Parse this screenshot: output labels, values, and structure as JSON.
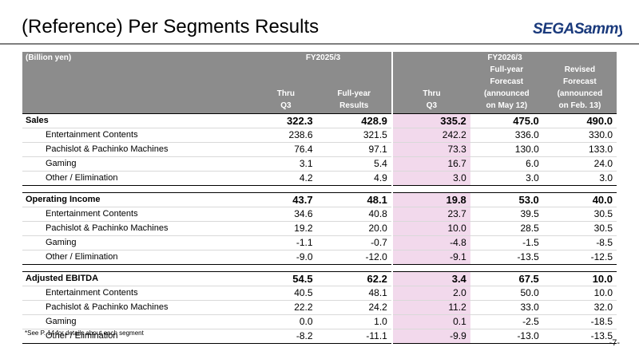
{
  "title": "(Reference) Per Segments Results",
  "logo": {
    "text": "SEGASammy"
  },
  "table": {
    "unit_label": "(Billion yen)",
    "fy2025_label": "FY2025/3",
    "fy2026_label": "FY2026/3",
    "columns": [
      {
        "line1": "",
        "line2": "",
        "line3": "Thru",
        "line4": "Q3"
      },
      {
        "line1": "",
        "line2": "",
        "line3": "Full-year",
        "line4": "Results"
      },
      {
        "line1": "",
        "line2": "",
        "line3": "Thru",
        "line4": "Q3"
      },
      {
        "line1": "Full-year",
        "line2": "Forecast",
        "line3": "(announced",
        "line4": "on May 12)"
      },
      {
        "line1": "Revised",
        "line2": "Forecast",
        "line3": "(announced",
        "line4": "on Feb. 13)"
      }
    ],
    "groups": [
      {
        "name": "Sales",
        "values": [
          "322.3",
          "428.9",
          "335.2",
          "475.0",
          "490.0"
        ],
        "rows": [
          {
            "label": "Entertainment Contents",
            "values": [
              "238.6",
              "321.5",
              "242.2",
              "336.0",
              "330.0"
            ]
          },
          {
            "label": "Pachislot & Pachinko Machines",
            "values": [
              "76.4",
              "97.1",
              "73.3",
              "130.0",
              "133.0"
            ]
          },
          {
            "label": "Gaming",
            "values": [
              "3.1",
              "5.4",
              "16.7",
              "6.0",
              "24.0"
            ]
          },
          {
            "label": "Other / Elimination",
            "values": [
              "4.2",
              "4.9",
              "3.0",
              "3.0",
              "3.0"
            ]
          }
        ]
      },
      {
        "name": "Operating Income",
        "values": [
          "43.7",
          "48.1",
          "19.8",
          "53.0",
          "40.0"
        ],
        "rows": [
          {
            "label": "Entertainment Contents",
            "values": [
              "34.6",
              "40.8",
              "23.7",
              "39.5",
              "30.5"
            ]
          },
          {
            "label": "Pachislot & Pachinko Machines",
            "values": [
              "19.2",
              "20.0",
              "10.0",
              "28.5",
              "30.5"
            ]
          },
          {
            "label": "Gaming",
            "values": [
              "-1.1",
              "-0.7",
              "-4.8",
              "-1.5",
              "-8.5"
            ]
          },
          {
            "label": "Other / Elimination",
            "values": [
              "-9.0",
              "-12.0",
              "-9.1",
              "-13.5",
              "-12.5"
            ]
          }
        ]
      },
      {
        "name": "Adjusted EBITDA",
        "values": [
          "54.5",
          "62.2",
          "3.4",
          "67.5",
          "10.0"
        ],
        "rows": [
          {
            "label": "Entertainment Contents",
            "values": [
              "40.5",
              "48.1",
              "2.0",
              "50.0",
              "10.0"
            ]
          },
          {
            "label": "Pachislot & Pachinko Machines",
            "values": [
              "22.2",
              "24.2",
              "11.2",
              "33.0",
              "32.0"
            ]
          },
          {
            "label": "Gaming",
            "values": [
              "0.0",
              "1.0",
              "0.1",
              "-2.5",
              "-18.5"
            ]
          },
          {
            "label": "Other / Elimination",
            "values": [
              "-8.2",
              "-11.1",
              "-9.9",
              "-13.0",
              "-13.5"
            ]
          }
        ]
      }
    ]
  },
  "footnote": "*See P. 14 for details about each segment",
  "page_number": "-7-",
  "colors": {
    "header_bg": "#8c8c8c",
    "highlight": "#f2d9ec",
    "rule": "#7f7f7f",
    "logo_blue": "#1a3a7c"
  }
}
